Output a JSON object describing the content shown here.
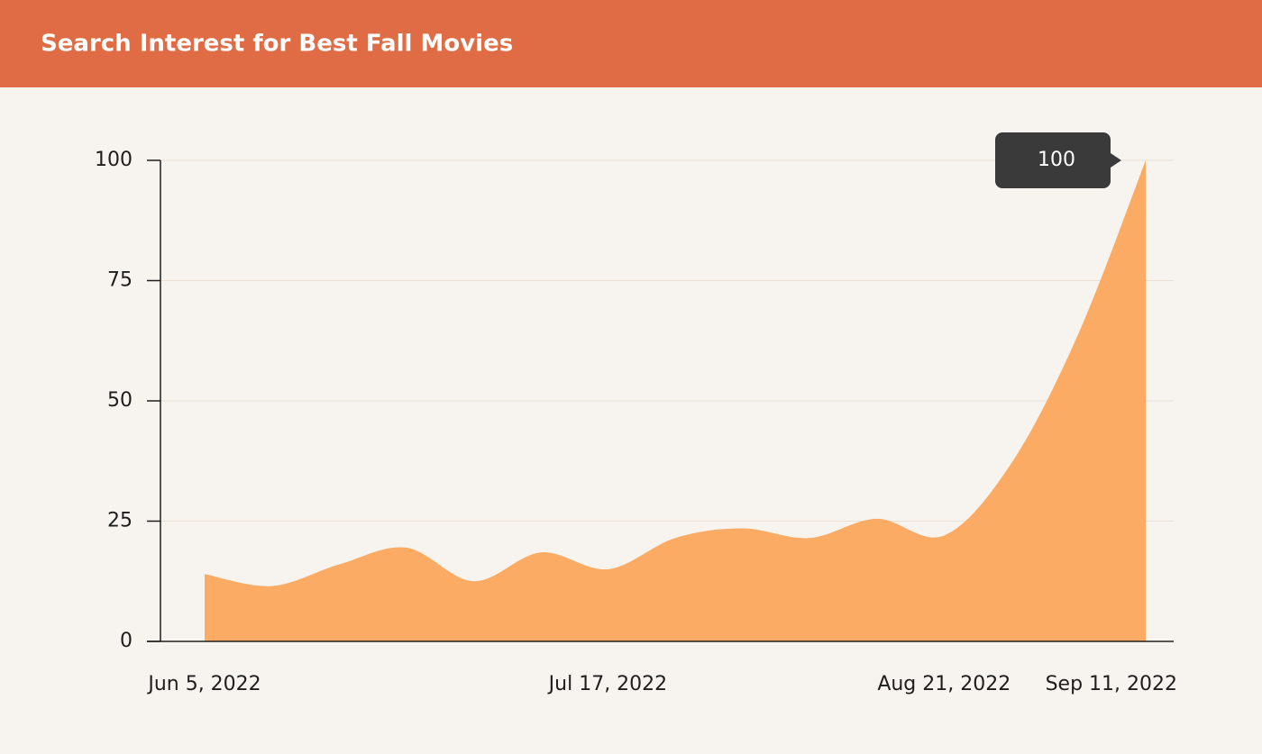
{
  "chart_data": {
    "type": "area",
    "title": "Search Interest for Best Fall Movies",
    "categories": [
      "Jun 5, 2022",
      null,
      null,
      null,
      null,
      null,
      "Jul 17, 2022",
      null,
      null,
      null,
      null,
      "Aug 21, 2022",
      null,
      null,
      "Sep 11, 2022"
    ],
    "values": [
      14,
      11.5,
      16,
      19.5,
      12.5,
      18.5,
      15,
      21.5,
      23.5,
      21.5,
      25.5,
      22,
      37,
      64,
      100
    ],
    "color": "#fbab63",
    "ylim": [
      0,
      100
    ],
    "yticks": [
      0,
      25,
      50,
      75,
      100
    ],
    "grid": true
  }
}
